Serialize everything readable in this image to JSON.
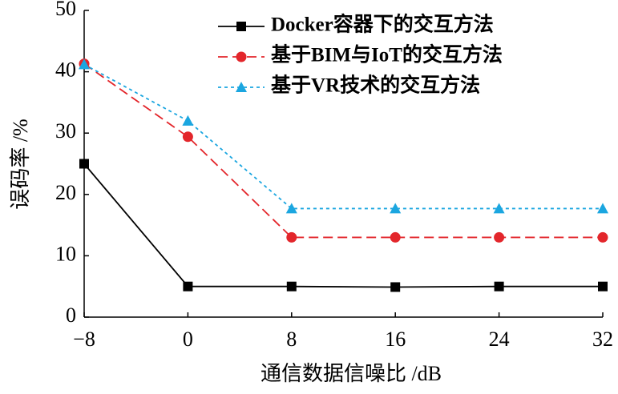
{
  "chart_data": {
    "type": "line",
    "x_label": "通信数据信噪比 /dB",
    "y_label": "误码率 /%",
    "x": [
      -8,
      0,
      8,
      16,
      24,
      32
    ],
    "series": [
      {
        "name": "Docker容器下的交互方法",
        "color": "#000000",
        "dash": "solid",
        "marker": "square",
        "values": [
          25,
          5,
          5,
          4.9,
          5,
          5
        ]
      },
      {
        "name": "基于BIM与IoT的交互方法",
        "color": "#e3262b",
        "dash": "dashed",
        "marker": "circle",
        "values": [
          41.3,
          29.4,
          13,
          13,
          13,
          13
        ]
      },
      {
        "name": "基于VR技术的交互方法",
        "color": "#1ba6e0",
        "dash": "dotted",
        "marker": "triangle",
        "values": [
          41.2,
          32,
          17.7,
          17.7,
          17.7,
          17.7
        ]
      }
    ],
    "xlim": [
      -8,
      32
    ],
    "xticks": [
      {
        "value": -8,
        "label": "−8"
      },
      0,
      8,
      16,
      24,
      32
    ],
    "ylim": [
      0,
      50
    ],
    "yticks": [
      0,
      10,
      20,
      30,
      40,
      50
    ],
    "legend": "upper right"
  }
}
